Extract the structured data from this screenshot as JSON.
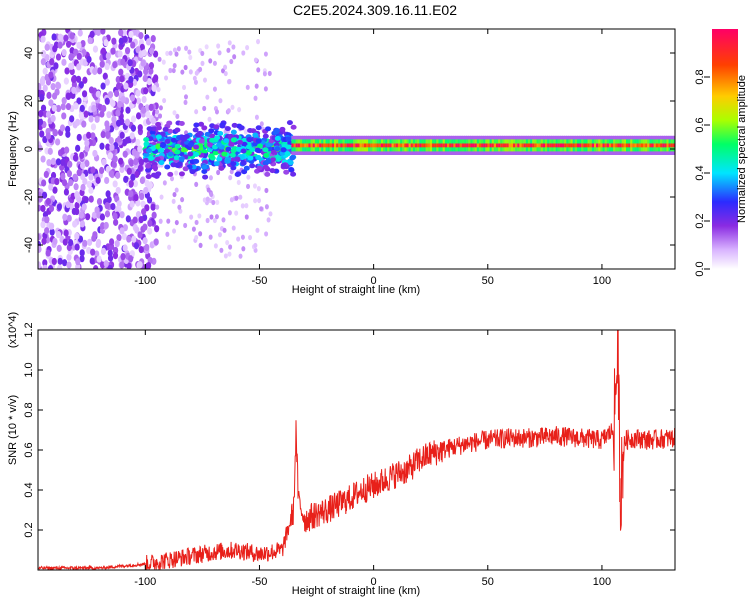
{
  "title": "C2E5.2024.309.16.11.E02",
  "chart_data": [
    {
      "type": "heatmap",
      "xlabel": "Height of straight line (km)",
      "ylabel": "Frequency (Hz)",
      "xlim": [
        -147,
        132
      ],
      "ylim": [
        -50,
        50
      ],
      "xticks": [
        -100,
        -50,
        0,
        50,
        100
      ],
      "yticks": [
        -40,
        -20,
        0,
        20,
        40
      ],
      "colorbar": {
        "label": "Normalized spectral amplitude",
        "range": [
          0,
          1
        ],
        "ticks": [
          "0.0",
          "0.2",
          "0.4",
          "0.6",
          "0.8"
        ],
        "colormap": [
          "#ffffff",
          "#d9b3ff",
          "#8a2be2",
          "#2b2bff",
          "#00e5ff",
          "#00ff66",
          "#aaff00",
          "#ffcc00",
          "#ff4000",
          "#ff0066"
        ]
      },
      "regions": [
        {
          "x_range": [
            -147,
            -95
          ],
          "freq_range": [
            -50,
            50
          ],
          "amplitude": "0.05-0.25 scattered"
        },
        {
          "x_range": [
            -100,
            -35
          ],
          "freq_range": [
            -12,
            12
          ],
          "amplitude": "0.2-0.6"
        },
        {
          "x_range": [
            -36,
            132
          ],
          "center_freq_hz": 1.5,
          "half_width_hz": 2.5,
          "amplitude": "0.5-1.0"
        }
      ]
    },
    {
      "type": "line",
      "xlabel": "Height of straight line (km)",
      "ylabel": "SNR (10 * v/v)",
      "y_multiplier": "(x10^4)",
      "xlim": [
        -147,
        132
      ],
      "ylim": [
        0,
        1.2
      ],
      "xticks": [
        -100,
        -50,
        0,
        50,
        100
      ],
      "yticks": [
        "0.2",
        "0.4",
        "0.6",
        "0.8",
        "1.0",
        "1.2"
      ],
      "series": [
        {
          "color": "#e8201a",
          "x": [
            -147,
            -120,
            -100,
            -90,
            -80,
            -70,
            -60,
            -50,
            -40,
            -35,
            -34,
            -33,
            -30,
            -25,
            -20,
            -15,
            -10,
            -5,
            0,
            5,
            10,
            15,
            20,
            25,
            30,
            40,
            50,
            60,
            70,
            80,
            90,
            100,
            105,
            107,
            108,
            110,
            115,
            120,
            132
          ],
          "y": [
            0.01,
            0.01,
            0.03,
            0.05,
            0.07,
            0.09,
            0.1,
            0.08,
            0.1,
            0.3,
            0.7,
            0.35,
            0.25,
            0.28,
            0.3,
            0.33,
            0.36,
            0.4,
            0.42,
            0.45,
            0.48,
            0.5,
            0.55,
            0.58,
            0.6,
            0.63,
            0.65,
            0.66,
            0.66,
            0.67,
            0.66,
            0.65,
            0.7,
            1.1,
            0.4,
            0.65,
            0.66,
            0.65,
            0.66
          ]
        }
      ]
    }
  ]
}
